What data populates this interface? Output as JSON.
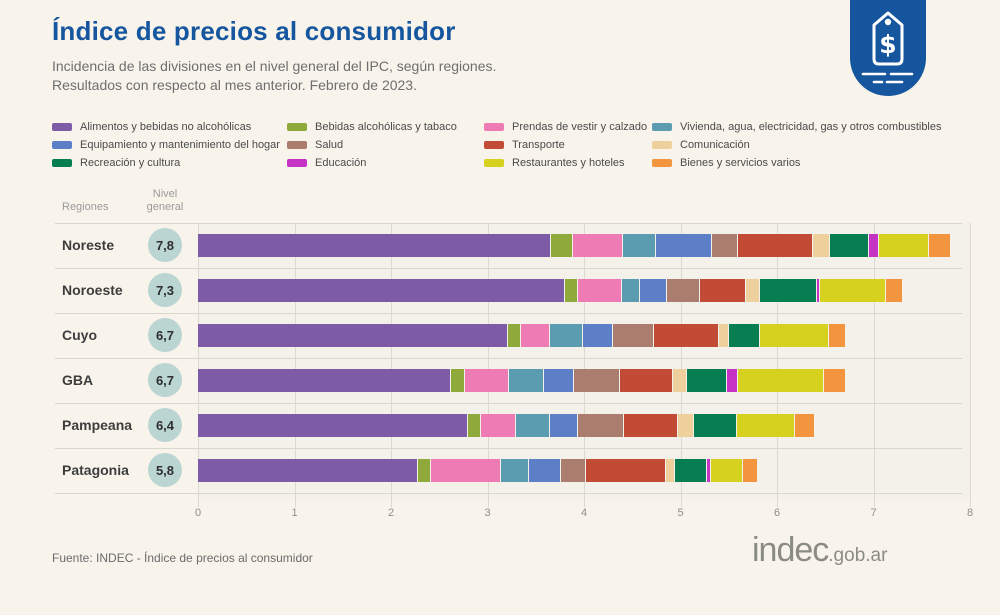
{
  "header": {
    "title": "Índice de precios al consumidor",
    "subtitle_line1": "Incidencia de las divisiones en el nivel general del IPC, según regiones.",
    "subtitle_line2": "Resultados con respecto al mes anterior. Febrero de 2023.",
    "title_color": "#15569e"
  },
  "logo": {
    "icon": "price-tag-icon",
    "bg_color": "#15569e",
    "currency_symbol": "$"
  },
  "table": {
    "regions_header": "Regiones",
    "level_header_line1": "Nivel",
    "level_header_line2": "general"
  },
  "chart_data": {
    "type": "bar",
    "orientation": "horizontal-stacked",
    "title": "Incidencia de las divisiones en el nivel general del IPC, según regiones",
    "xlabel": "",
    "ylabel": "Regiones",
    "xlim": [
      0,
      8
    ],
    "x_ticks": [
      0,
      1,
      2,
      3,
      4,
      5,
      6,
      7,
      8
    ],
    "grid": true,
    "legend_position": "top",
    "divisions": [
      {
        "key": "alimentos",
        "label": "Alimentos y bebidas no alcohólicas",
        "color": "#7d5ba6"
      },
      {
        "key": "bebidas-alc",
        "label": "Bebidas alcohólicas y tabaco",
        "color": "#8fa93a"
      },
      {
        "key": "prendas",
        "label": "Prendas de vestir y calzado",
        "color": "#ee7bb3"
      },
      {
        "key": "vivienda",
        "label": "Vivienda, agua, electricidad, gas y otros combustibles",
        "color": "#5b9cb1"
      },
      {
        "key": "equipamiento",
        "label": "Equipamiento y mantenimiento del hogar",
        "color": "#5d7fc8"
      },
      {
        "key": "salud",
        "label": "Salud",
        "color": "#aa7d6e"
      },
      {
        "key": "transporte",
        "label": "Transporte",
        "color": "#c24b35"
      },
      {
        "key": "comunicacion",
        "label": "Comunicación",
        "color": "#edd09b"
      },
      {
        "key": "recreacion",
        "label": "Recreación y cultura",
        "color": "#077d52"
      },
      {
        "key": "educacion",
        "label": "Educación",
        "color": "#c433c4"
      },
      {
        "key": "restaurantes",
        "label": "Restaurantes y hoteles",
        "color": "#d6d01f"
      },
      {
        "key": "bienes",
        "label": "Bienes y servicios varios",
        "color": "#f2953e"
      }
    ],
    "regions": [
      {
        "name": "Noreste",
        "nivel_general": "7,8",
        "nivel_value": 7.8,
        "values": [
          3.66,
          0.23,
          0.52,
          0.34,
          0.58,
          0.27,
          0.78,
          0.18,
          0.4,
          0.1,
          0.52,
          0.23
        ]
      },
      {
        "name": "Noroeste",
        "nivel_general": "7,3",
        "nivel_value": 7.3,
        "values": [
          3.8,
          0.13,
          0.46,
          0.19,
          0.28,
          0.34,
          0.48,
          0.14,
          0.59,
          0.03,
          0.68,
          0.18
        ]
      },
      {
        "name": "Cuyo",
        "nivel_general": "6,7",
        "nivel_value": 6.7,
        "values": [
          3.21,
          0.13,
          0.3,
          0.34,
          0.31,
          0.43,
          0.67,
          0.1,
          0.32,
          0.0,
          0.71,
          0.18
        ]
      },
      {
        "name": "GBA",
        "nivel_general": "6,7",
        "nivel_value": 6.7,
        "values": [
          2.62,
          0.14,
          0.46,
          0.36,
          0.31,
          0.48,
          0.55,
          0.14,
          0.41,
          0.11,
          0.89,
          0.23
        ]
      },
      {
        "name": "Pampeana",
        "nivel_general": "6,4",
        "nivel_value": 6.4,
        "values": [
          2.8,
          0.13,
          0.36,
          0.35,
          0.29,
          0.48,
          0.56,
          0.17,
          0.45,
          0.0,
          0.6,
          0.21
        ]
      },
      {
        "name": "Patagonia",
        "nivel_general": "5,8",
        "nivel_value": 5.8,
        "values": [
          2.28,
          0.13,
          0.73,
          0.29,
          0.33,
          0.26,
          0.83,
          0.09,
          0.33,
          0.04,
          0.33,
          0.16
        ]
      }
    ],
    "level_circle_color": "#bad5d2"
  },
  "footer": {
    "source": "Fuente: INDEC - Índice de precios al consumidor",
    "brand": "indec",
    "brand_suffix": ".gob.ar"
  }
}
